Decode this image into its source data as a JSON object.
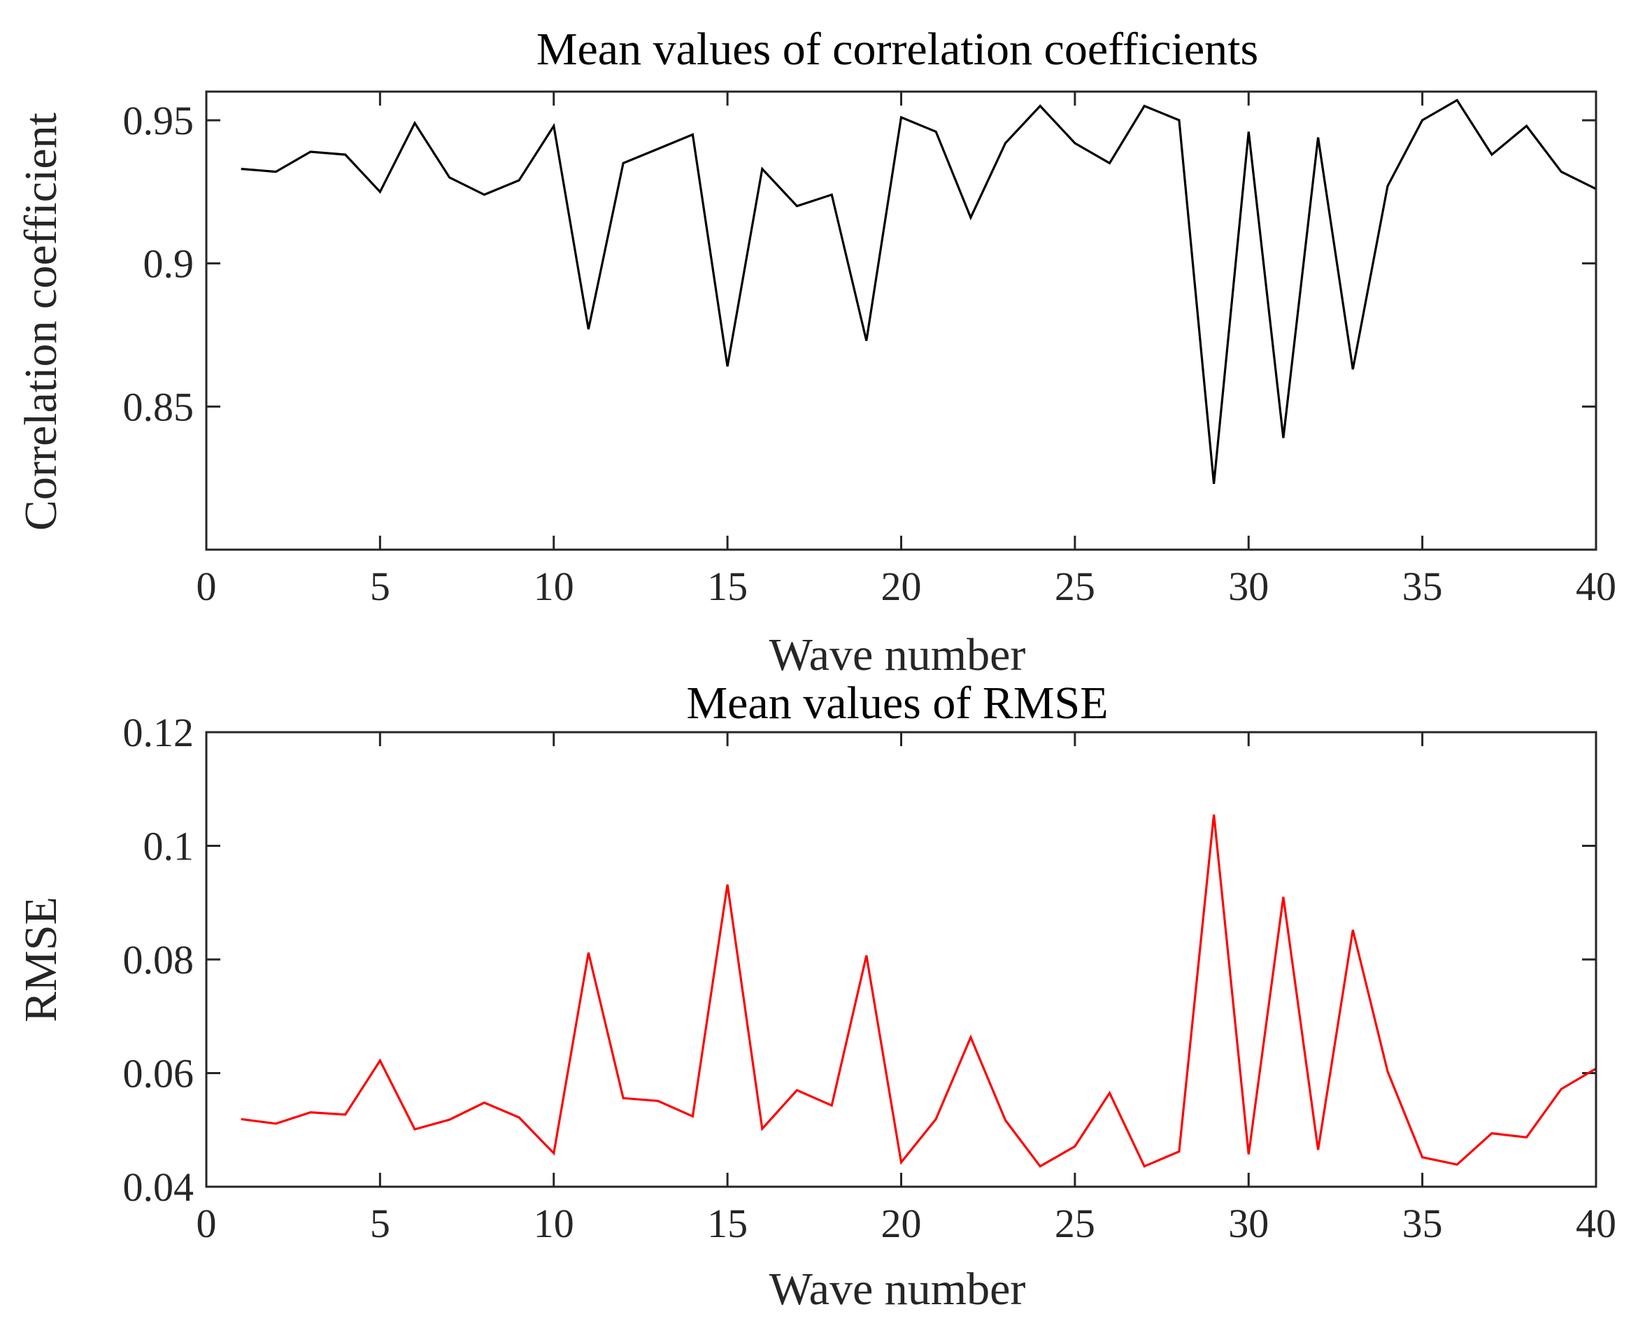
{
  "chart_data": [
    {
      "type": "line",
      "title": "Mean values of correlation coefficients",
      "xlabel": "Wave number",
      "ylabel": "Correlation coefficient",
      "xlim": [
        0,
        40
      ],
      "ylim": [
        0.8,
        0.96
      ],
      "xticks": [
        0,
        5,
        10,
        15,
        20,
        25,
        30,
        35,
        40
      ],
      "yticks": [
        0.85,
        0.9,
        0.95
      ],
      "ytick_labels": [
        "0.85",
        "0.9",
        "0.95"
      ],
      "grid": false,
      "series": [
        {
          "name": "Correlation coefficient",
          "color": "#000000",
          "x": [
            1,
            2,
            3,
            4,
            5,
            6,
            7,
            8,
            9,
            10,
            11,
            12,
            13,
            14,
            15,
            16,
            17,
            18,
            19,
            20,
            21,
            22,
            23,
            24,
            25,
            26,
            27,
            28,
            29,
            30,
            31,
            32,
            33,
            34,
            35,
            36,
            37,
            38,
            39,
            40
          ],
          "values": [
            0.933,
            0.932,
            0.939,
            0.938,
            0.925,
            0.949,
            0.93,
            0.924,
            0.929,
            0.948,
            0.877,
            0.935,
            0.94,
            0.945,
            0.864,
            0.933,
            0.92,
            0.924,
            0.873,
            0.951,
            0.946,
            0.916,
            0.942,
            0.955,
            0.942,
            0.935,
            0.955,
            0.95,
            0.823,
            0.946,
            0.839,
            0.944,
            0.863,
            0.927,
            0.95,
            0.957,
            0.938,
            0.948,
            0.932,
            0.926
          ]
        }
      ]
    },
    {
      "type": "line",
      "title": "Mean values of RMSE",
      "xlabel": "Wave number",
      "ylabel": "RMSE",
      "xlim": [
        0,
        40
      ],
      "ylim": [
        0.04,
        0.12
      ],
      "xticks": [
        0,
        5,
        10,
        15,
        20,
        25,
        30,
        35,
        40
      ],
      "yticks": [
        0.04,
        0.06,
        0.08,
        0.1,
        0.12
      ],
      "ytick_labels": [
        "0.04",
        "0.06",
        "0.08",
        "0.1",
        "0.12"
      ],
      "grid": false,
      "series": [
        {
          "name": "RMSE",
          "color": "#ff0000",
          "x": [
            1,
            2,
            3,
            4,
            5,
            6,
            7,
            8,
            9,
            10,
            11,
            12,
            13,
            14,
            15,
            16,
            17,
            18,
            19,
            20,
            21,
            22,
            23,
            24,
            25,
            26,
            27,
            28,
            29,
            30,
            31,
            32,
            33,
            34,
            35,
            36,
            37,
            38,
            39,
            40
          ],
          "values": [
            0.0519,
            0.0511,
            0.0531,
            0.0527,
            0.0622,
            0.0501,
            0.0518,
            0.0548,
            0.0522,
            0.0459,
            0.0812,
            0.0556,
            0.0551,
            0.0524,
            0.0932,
            0.0502,
            0.057,
            0.0543,
            0.0807,
            0.0443,
            0.0519,
            0.0663,
            0.0517,
            0.0436,
            0.0471,
            0.0565,
            0.0436,
            0.0462,
            0.1055,
            0.0457,
            0.091,
            0.0465,
            0.0852,
            0.0603,
            0.0452,
            0.0439,
            0.0494,
            0.0487,
            0.0572,
            0.0608
          ]
        }
      ]
    }
  ]
}
